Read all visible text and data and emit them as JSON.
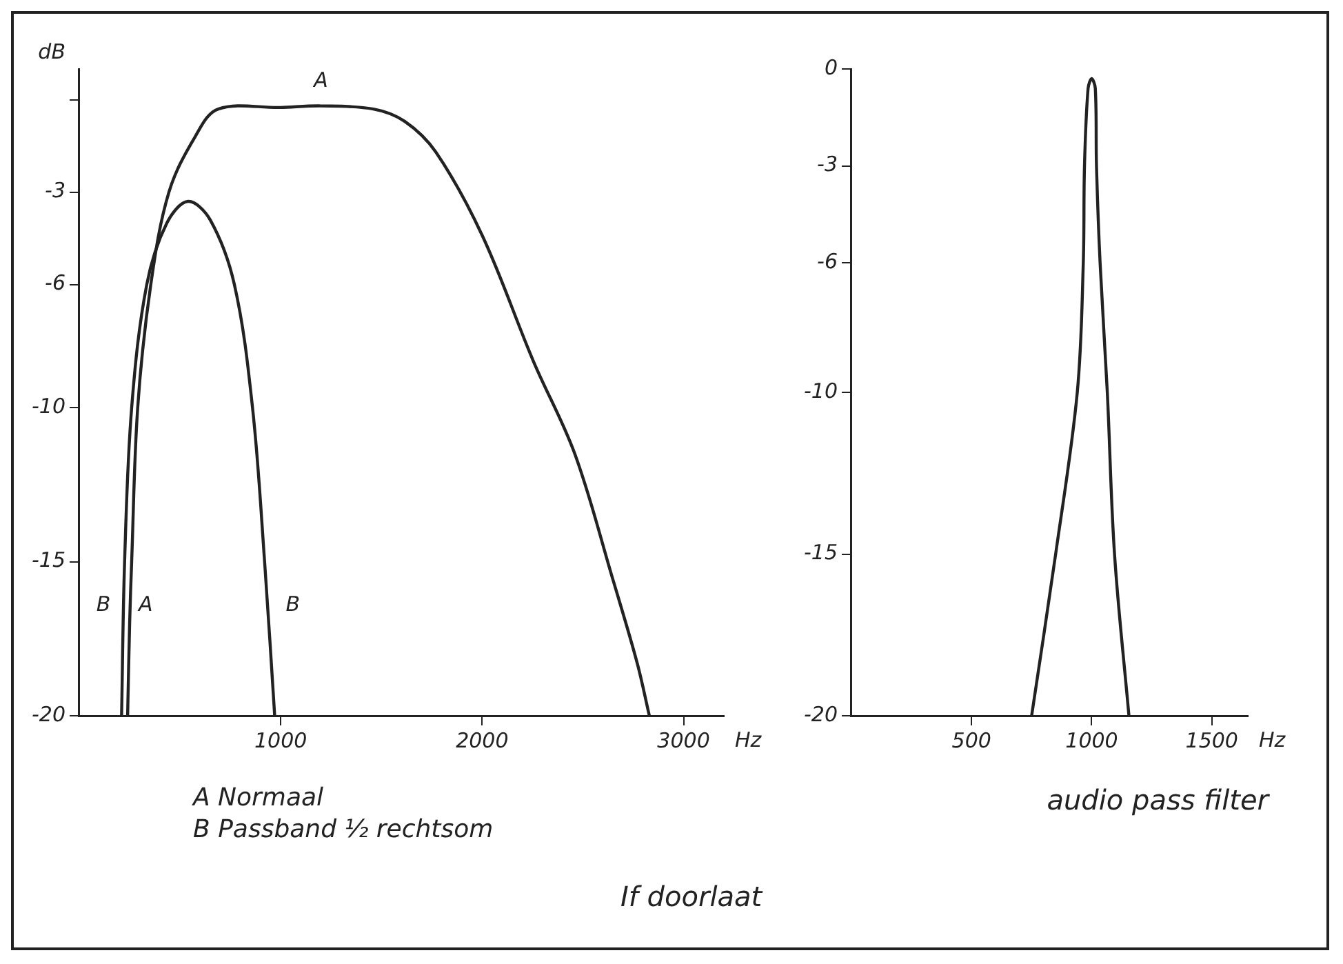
{
  "chart_data": [
    {
      "type": "line",
      "ylabel": "dB",
      "xlabel": "Hz",
      "xlim": [
        0,
        3200
      ],
      "ylim": [
        -20,
        1
      ],
      "xticks": [
        1000,
        2000,
        3000
      ],
      "yticks": [
        {
          "value": 0,
          "label": null
        },
        -3,
        -6,
        -10,
        -15,
        -20
      ],
      "grid": false,
      "marker": "none",
      "line_style": "solid",
      "legend": false,
      "series": [
        {
          "name": "A",
          "color": "#222222",
          "x": [
            240,
            250,
            260,
            290,
            355,
            445,
            575,
            690,
            1000,
            1200,
            1460,
            1615,
            1770,
            2000,
            2255,
            2460,
            2650,
            2770,
            2830
          ],
          "values": [
            -20,
            -17,
            -15,
            -10,
            -6,
            -3,
            -1.2,
            -0.3,
            -0.25,
            -0.2,
            -0.3,
            -0.7,
            -1.7,
            -4.4,
            -8.5,
            -11.5,
            -15.6,
            -18.3,
            -20
          ]
        },
        {
          "name": "B",
          "color": "#222222",
          "x": [
            210,
            225,
            260,
            335,
            435,
            540,
            650,
            770,
            860,
            920,
            970
          ],
          "values": [
            -20,
            -15,
            -10,
            -6,
            -4,
            -3.3,
            -3.9,
            -6,
            -10,
            -15,
            -20
          ]
        }
      ],
      "annotations": [
        "A Normaal",
        "B Passband ½ rechtsom",
        "If doorlaat"
      ]
    },
    {
      "type": "line",
      "title": "audio pass filter",
      "xlabel": "Hz",
      "xlim": [
        0,
        1650
      ],
      "ylim": [
        -20,
        0
      ],
      "xticks": [
        500,
        1000,
        1500
      ],
      "yticks": [
        0,
        -3,
        -6,
        -10,
        -15,
        -20
      ],
      "grid": false,
      "marker": "none",
      "line_style": "solid",
      "legend": false,
      "series": [
        {
          "color": "#222222",
          "x": [
            750,
            850,
            940,
            965,
            970,
            985,
            1000,
            1015,
            1020,
            1035,
            1065,
            1095,
            1155
          ],
          "values": [
            -20,
            -15,
            -10,
            -6,
            -3,
            -0.6,
            -0.3,
            -0.6,
            -3,
            -6,
            -10,
            -15,
            -20
          ]
        }
      ]
    }
  ]
}
